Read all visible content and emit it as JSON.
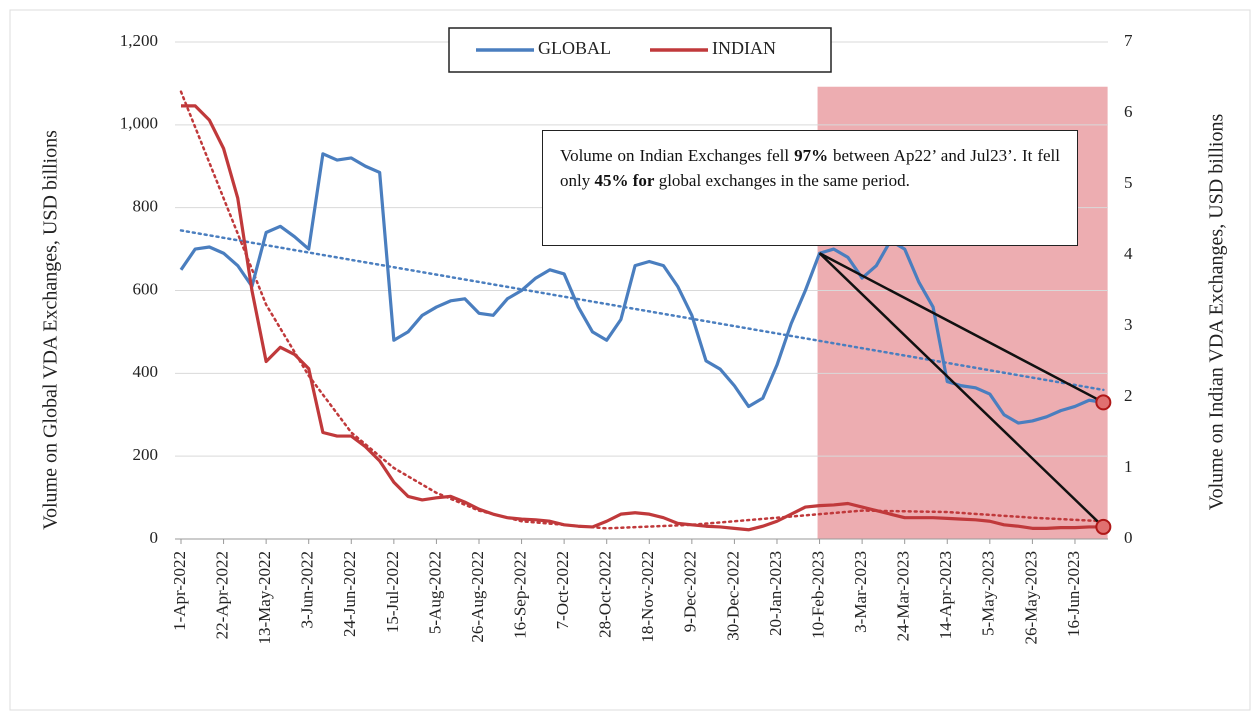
{
  "chart_data": {
    "type": "line",
    "categories": [
      "1-Apr-2022",
      null,
      null,
      "22-Apr-2022",
      null,
      null,
      "13-May-2022",
      null,
      null,
      "3-Jun-2022",
      null,
      null,
      "24-Jun-2022",
      null,
      null,
      "15-Jul-2022",
      null,
      null,
      "5-Aug-2022",
      null,
      null,
      "26-Aug-2022",
      null,
      null,
      "16-Sep-2022",
      null,
      null,
      "7-Oct-2022",
      null,
      null,
      "28-Oct-2022",
      null,
      null,
      "18-Nov-2022",
      null,
      null,
      "9-Dec-2022",
      null,
      null,
      "30-Dec-2022",
      null,
      null,
      "20-Jan-2023",
      null,
      null,
      "10-Feb-2023",
      null,
      null,
      "3-Mar-2023",
      null,
      null,
      "24-Mar-2023",
      null,
      null,
      "14-Apr-2023",
      null,
      null,
      "5-May-2023",
      null,
      null,
      "26-May-2023",
      null,
      null,
      "16-Jun-2023",
      null,
      null
    ],
    "series": [
      {
        "name": "GLOBAL",
        "color": "#4a7ebf",
        "axis": "y",
        "values": [
          650,
          700,
          705,
          690,
          660,
          610,
          740,
          755,
          730,
          700,
          930,
          915,
          920,
          900,
          885,
          480,
          500,
          540,
          560,
          575,
          580,
          545,
          540,
          580,
          600,
          630,
          650,
          640,
          560,
          500,
          480,
          530,
          660,
          670,
          660,
          610,
          540,
          430,
          410,
          370,
          320,
          340,
          420,
          520,
          600,
          690,
          700,
          680,
          630,
          660,
          720,
          700,
          620,
          560,
          380,
          370,
          365,
          350,
          300,
          280,
          285,
          295,
          310,
          320,
          335,
          330
        ]
      },
      {
        "name": "INDIAN",
        "color": "#c0393b",
        "axis": "y2",
        "values": [
          6.1,
          6.1,
          5.9,
          5.5,
          4.8,
          3.5,
          2.5,
          2.7,
          2.6,
          2.4,
          1.5,
          1.45,
          1.45,
          1.3,
          1.1,
          0.8,
          0.6,
          0.55,
          0.58,
          0.6,
          0.52,
          0.42,
          0.35,
          0.3,
          0.28,
          0.27,
          0.25,
          0.2,
          0.18,
          0.17,
          0.25,
          0.35,
          0.37,
          0.35,
          0.3,
          0.22,
          0.2,
          0.18,
          0.17,
          0.15,
          0.13,
          0.18,
          0.25,
          0.35,
          0.45,
          0.47,
          0.48,
          0.5,
          0.45,
          0.4,
          0.35,
          0.3,
          0.3,
          0.3,
          0.29,
          0.28,
          0.27,
          0.25,
          0.2,
          0.18,
          0.15,
          0.15,
          0.16,
          0.16,
          0.17,
          0.17
        ]
      }
    ],
    "trendlines": [
      {
        "color": "#4a7ebf",
        "axis": "y",
        "x": [
          0,
          65
        ],
        "values": [
          745,
          360
        ]
      },
      {
        "color": "#c0393b",
        "axis": "y2",
        "x": [
          0,
          3,
          6,
          9,
          12,
          15,
          18,
          21,
          24,
          30,
          36,
          42,
          48,
          54,
          60,
          65
        ],
        "values": [
          6.3,
          4.8,
          3.3,
          2.3,
          1.5,
          1.0,
          0.65,
          0.4,
          0.25,
          0.15,
          0.2,
          0.3,
          0.4,
          0.38,
          0.3,
          0.25
        ]
      }
    ],
    "highlight": {
      "x": [
        45,
        65.3
      ],
      "y": [
        0,
        1092
      ],
      "color": "#e9999e"
    },
    "ylabel": "Volume on Global VDA Exchanges, USD billions",
    "y2label": "Volume on Indian VDA Exchanges, USD billions",
    "ylim": [
      0,
      1200
    ],
    "yticks": [
      0,
      200,
      400,
      600,
      800,
      {
        "value": 1000,
        "label": "1,000"
      },
      {
        "value": 1200,
        "label": "1,200"
      }
    ],
    "y2lim": [
      0,
      7
    ],
    "y2ticks": [
      0,
      1,
      2,
      3,
      4,
      5,
      6,
      7
    ],
    "grid": true,
    "legend": "top",
    "annotation": {
      "parts": [
        "Volume on Indian Exchanges fell ",
        "97%",
        " between Ap22’ and Jul23’. It fell only ",
        "45% for",
        " global exchanges in the same period."
      ]
    }
  }
}
